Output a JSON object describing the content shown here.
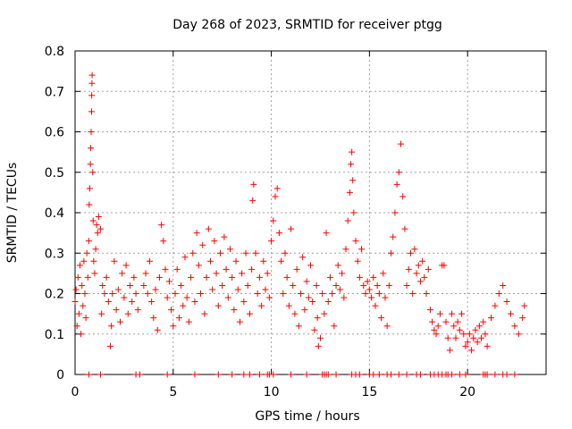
{
  "chart_data": {
    "type": "scatter",
    "title": "Day 268 of 2023, SRMTID for receiver ptgg",
    "xlabel": "GPS time / hours",
    "ylabel": "SRMTID / TECUs",
    "xlim": [
      0,
      24
    ],
    "ylim": [
      0,
      0.8
    ],
    "x_ticks": [
      0,
      5,
      10,
      15,
      20
    ],
    "x_tick_labels": [
      "0",
      "5",
      "10",
      "15",
      "20"
    ],
    "y_ticks": [
      0,
      0.1,
      0.2,
      0.3,
      0.4,
      0.5,
      0.6,
      0.7,
      0.8
    ],
    "y_tick_labels": [
      "0",
      "0.1",
      "0.2",
      "0.3",
      "0.4",
      "0.5",
      "0.6",
      "0.7",
      "0.8"
    ],
    "grid": true,
    "marker": "+",
    "color": "#ff0000",
    "series": [
      {
        "name": "SRMTID",
        "points": [
          [
            0.0,
            0.18
          ],
          [
            0.05,
            0.21
          ],
          [
            0.1,
            0.12
          ],
          [
            0.15,
            0.24
          ],
          [
            0.2,
            0.15
          ],
          [
            0.25,
            0.27
          ],
          [
            0.3,
            0.1
          ],
          [
            0.35,
            0.22
          ],
          [
            0.4,
            0.17
          ],
          [
            0.45,
            0.28
          ],
          [
            0.5,
            0.2
          ],
          [
            0.55,
            0.14
          ],
          [
            0.6,
            0.3
          ],
          [
            0.65,
            0.24
          ],
          [
            0.7,
            0.33
          ],
          [
            0.72,
            0.42
          ],
          [
            0.75,
            0.46
          ],
          [
            0.78,
            0.52
          ],
          [
            0.8,
            0.56
          ],
          [
            0.82,
            0.6
          ],
          [
            0.84,
            0.65
          ],
          [
            0.85,
            0.69
          ],
          [
            0.86,
            0.72
          ],
          [
            0.87,
            0.74
          ],
          [
            0.9,
            0.5
          ],
          [
            0.92,
            0.38
          ],
          [
            0.95,
            0.28
          ],
          [
            1.0,
            0.25
          ],
          [
            1.05,
            0.31
          ],
          [
            1.1,
            0.37
          ],
          [
            1.15,
            0.35
          ],
          [
            1.2,
            0.39
          ],
          [
            1.3,
            0.36
          ],
          [
            1.35,
            0.15
          ],
          [
            1.4,
            0.22
          ],
          [
            1.5,
            0.2
          ],
          [
            1.6,
            0.24
          ],
          [
            1.7,
            0.18
          ],
          [
            1.8,
            0.07
          ],
          [
            1.85,
            0.12
          ],
          [
            1.9,
            0.2
          ],
          [
            2.0,
            0.28
          ],
          [
            2.1,
            0.16
          ],
          [
            2.2,
            0.21
          ],
          [
            2.3,
            0.13
          ],
          [
            2.4,
            0.25
          ],
          [
            2.5,
            0.19
          ],
          [
            2.6,
            0.27
          ],
          [
            2.7,
            0.15
          ],
          [
            2.8,
            0.22
          ],
          [
            2.9,
            0.18
          ],
          [
            3.0,
            0.24
          ],
          [
            3.1,
            0.2
          ],
          [
            3.2,
            0.16
          ],
          [
            3.5,
            0.22
          ],
          [
            3.6,
            0.25
          ],
          [
            3.7,
            0.2
          ],
          [
            3.8,
            0.28
          ],
          [
            3.9,
            0.18
          ],
          [
            4.0,
            0.14
          ],
          [
            4.1,
            0.21
          ],
          [
            4.2,
            0.11
          ],
          [
            4.3,
            0.24
          ],
          [
            4.4,
            0.37
          ],
          [
            4.5,
            0.33
          ],
          [
            4.6,
            0.26
          ],
          [
            4.7,
            0.19
          ],
          [
            4.8,
            0.23
          ],
          [
            4.9,
            0.16
          ],
          [
            5.0,
            0.12
          ],
          [
            5.1,
            0.2
          ],
          [
            5.2,
            0.26
          ],
          [
            5.3,
            0.14
          ],
          [
            5.4,
            0.22
          ],
          [
            5.5,
            0.17
          ],
          [
            5.6,
            0.29
          ],
          [
            5.7,
            0.19
          ],
          [
            5.8,
            0.13
          ],
          [
            5.9,
            0.24
          ],
          [
            6.0,
            0.3
          ],
          [
            6.1,
            0.18
          ],
          [
            6.2,
            0.35
          ],
          [
            6.3,
            0.27
          ],
          [
            6.4,
            0.2
          ],
          [
            6.5,
            0.32
          ],
          [
            6.6,
            0.15
          ],
          [
            6.7,
            0.24
          ],
          [
            6.8,
            0.36
          ],
          [
            6.9,
            0.28
          ],
          [
            7.0,
            0.21
          ],
          [
            7.1,
            0.33
          ],
          [
            7.2,
            0.25
          ],
          [
            7.3,
            0.17
          ],
          [
            7.4,
            0.3
          ],
          [
            7.5,
            0.22
          ],
          [
            7.6,
            0.34
          ],
          [
            7.7,
            0.26
          ],
          [
            7.8,
            0.19
          ],
          [
            7.9,
            0.31
          ],
          [
            8.0,
            0.24
          ],
          [
            8.1,
            0.16
          ],
          [
            8.2,
            0.28
          ],
          [
            8.3,
            0.21
          ],
          [
            8.4,
            0.13
          ],
          [
            8.5,
            0.25
          ],
          [
            8.6,
            0.18
          ],
          [
            8.7,
            0.3
          ],
          [
            8.8,
            0.22
          ],
          [
            8.9,
            0.15
          ],
          [
            9.0,
            0.26
          ],
          [
            9.05,
            0.43
          ],
          [
            9.1,
            0.47
          ],
          [
            9.2,
            0.3
          ],
          [
            9.3,
            0.2
          ],
          [
            9.4,
            0.24
          ],
          [
            9.5,
            0.17
          ],
          [
            9.6,
            0.28
          ],
          [
            9.7,
            0.21
          ],
          [
            9.8,
            0.25
          ],
          [
            9.9,
            0.19
          ],
          [
            10.0,
            0.33
          ],
          [
            10.1,
            0.38
          ],
          [
            10.2,
            0.44
          ],
          [
            10.3,
            0.46
          ],
          [
            10.4,
            0.35
          ],
          [
            10.5,
            0.28
          ],
          [
            10.6,
            0.2
          ],
          [
            10.7,
            0.3
          ],
          [
            10.8,
            0.24
          ],
          [
            10.9,
            0.17
          ],
          [
            11.0,
            0.36
          ],
          [
            11.1,
            0.22
          ],
          [
            11.2,
            0.15
          ],
          [
            11.3,
            0.26
          ],
          [
            11.4,
            0.12
          ],
          [
            11.5,
            0.2
          ],
          [
            11.6,
            0.29
          ],
          [
            11.7,
            0.16
          ],
          [
            11.8,
            0.23
          ],
          [
            11.9,
            0.19
          ],
          [
            12.0,
            0.27
          ],
          [
            12.1,
            0.18
          ],
          [
            12.2,
            0.11
          ],
          [
            12.3,
            0.22
          ],
          [
            12.35,
            0.14
          ],
          [
            12.4,
            0.07
          ],
          [
            12.5,
            0.09
          ],
          [
            12.6,
            0.2
          ],
          [
            12.7,
            0.15
          ],
          [
            12.8,
            0.35
          ],
          [
            12.9,
            0.18
          ],
          [
            13.0,
            0.24
          ],
          [
            13.1,
            0.2
          ],
          [
            13.2,
            0.12
          ],
          [
            13.3,
            0.22
          ],
          [
            13.4,
            0.27
          ],
          [
            13.5,
            0.21
          ],
          [
            13.6,
            0.25
          ],
          [
            13.7,
            0.19
          ],
          [
            13.8,
            0.31
          ],
          [
            13.9,
            0.38
          ],
          [
            14.0,
            0.45
          ],
          [
            14.05,
            0.52
          ],
          [
            14.1,
            0.55
          ],
          [
            14.15,
            0.48
          ],
          [
            14.2,
            0.4
          ],
          [
            14.3,
            0.33
          ],
          [
            14.4,
            0.28
          ],
          [
            14.5,
            0.24
          ],
          [
            14.6,
            0.31
          ],
          [
            14.7,
            0.22
          ],
          [
            14.8,
            0.2
          ],
          [
            14.9,
            0.23
          ],
          [
            15.0,
            0.21
          ],
          [
            15.1,
            0.19
          ],
          [
            15.2,
            0.24
          ],
          [
            15.3,
            0.17
          ],
          [
            15.4,
            0.22
          ],
          [
            15.5,
            0.2
          ],
          [
            15.6,
            0.14
          ],
          [
            15.7,
            0.25
          ],
          [
            15.8,
            0.19
          ],
          [
            15.9,
            0.12
          ],
          [
            16.0,
            0.22
          ],
          [
            16.1,
            0.3
          ],
          [
            16.2,
            0.34
          ],
          [
            16.3,
            0.4
          ],
          [
            16.4,
            0.47
          ],
          [
            16.5,
            0.5
          ],
          [
            16.6,
            0.57
          ],
          [
            16.7,
            0.44
          ],
          [
            16.8,
            0.36
          ],
          [
            16.9,
            0.22
          ],
          [
            17.0,
            0.26
          ],
          [
            17.1,
            0.3
          ],
          [
            17.2,
            0.2
          ],
          [
            17.3,
            0.31
          ],
          [
            17.4,
            0.25
          ],
          [
            17.5,
            0.27
          ],
          [
            17.6,
            0.23
          ],
          [
            17.7,
            0.28
          ],
          [
            17.8,
            0.24
          ],
          [
            17.9,
            0.2
          ],
          [
            18.0,
            0.26
          ],
          [
            18.1,
            0.16
          ],
          [
            18.2,
            0.13
          ],
          [
            18.3,
            0.11
          ],
          [
            18.4,
            0.1
          ],
          [
            18.5,
            0.12
          ],
          [
            18.6,
            0.15
          ],
          [
            18.7,
            0.27
          ],
          [
            18.8,
            0.27
          ],
          [
            18.9,
            0.13
          ],
          [
            19.0,
            0.09
          ],
          [
            19.1,
            0.06
          ],
          [
            19.2,
            0.15
          ],
          [
            19.3,
            0.12
          ],
          [
            19.4,
            0.09
          ],
          [
            19.5,
            0.13
          ],
          [
            19.6,
            0.11
          ],
          [
            19.7,
            0.15
          ],
          [
            19.8,
            0.1
          ],
          [
            19.9,
            0.07
          ],
          [
            20.0,
            0.08
          ],
          [
            20.1,
            0.1
          ],
          [
            20.2,
            0.06
          ],
          [
            20.3,
            0.09
          ],
          [
            20.4,
            0.11
          ],
          [
            20.5,
            0.08
          ],
          [
            20.6,
            0.12
          ],
          [
            20.7,
            0.09
          ],
          [
            20.8,
            0.13
          ],
          [
            20.9,
            0.1
          ],
          [
            21.0,
            0.07
          ],
          [
            21.2,
            0.14
          ],
          [
            21.4,
            0.17
          ],
          [
            21.6,
            0.2
          ],
          [
            21.8,
            0.22
          ],
          [
            22.0,
            0.18
          ],
          [
            22.2,
            0.15
          ],
          [
            22.4,
            0.12
          ],
          [
            22.6,
            0.1
          ],
          [
            22.8,
            0.14
          ],
          [
            22.9,
            0.17
          ]
        ]
      }
    ],
    "zero_points_x": [
      0.7,
      1.3,
      3.1,
      3.3,
      4.7,
      6.1,
      7.3,
      8.0,
      8.6,
      8.9,
      9.4,
      9.8,
      9.9,
      10.1,
      11.0,
      11.8,
      12.6,
      12.7,
      12.8,
      12.9,
      13.3,
      14.1,
      14.3,
      14.5,
      15.0,
      15.2,
      15.5,
      15.9,
      16.1,
      16.5,
      16.9,
      17.4,
      17.6,
      18.1,
      18.3,
      18.5,
      18.7,
      18.9,
      19.0,
      19.2,
      19.6,
      19.9,
      20.8,
      20.9,
      21.0,
      21.4,
      21.8,
      22.0,
      22.4
    ]
  }
}
